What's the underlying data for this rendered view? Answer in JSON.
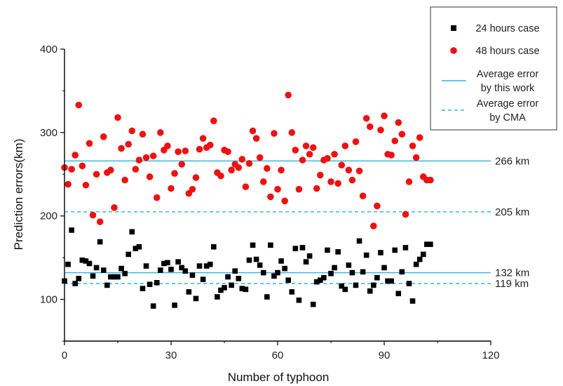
{
  "chart_data": {
    "type": "scatter",
    "title": "",
    "xlabel": "Number of typhoon",
    "ylabel": "Prediction errors(km)",
    "xlim": [
      0,
      120
    ],
    "ylim": [
      50,
      400
    ],
    "xticks": [
      0,
      30,
      60,
      90,
      120
    ],
    "yticks": [
      100,
      200,
      300,
      400
    ],
    "grid": false,
    "legend_position": "top-right",
    "series": [
      {
        "name": "24 hours case",
        "marker": "square",
        "color": "#000000",
        "x": [
          0,
          1,
          2,
          3,
          4,
          5,
          6,
          7,
          8,
          9,
          10,
          11,
          12,
          13,
          14,
          15,
          16,
          17,
          18,
          19,
          20,
          21,
          22,
          23,
          24,
          25,
          26,
          27,
          28,
          29,
          30,
          31,
          32,
          33,
          34,
          35,
          36,
          37,
          38,
          39,
          40,
          41,
          42,
          43,
          44,
          45,
          46,
          47,
          48,
          49,
          50,
          51,
          52,
          53,
          54,
          55,
          56,
          57,
          58,
          59,
          60,
          61,
          62,
          63,
          64,
          65,
          66,
          67,
          68,
          69,
          70,
          71,
          72,
          73,
          74,
          75,
          76,
          77,
          78,
          79,
          80,
          81,
          82,
          83,
          84,
          85,
          86,
          87,
          88,
          89,
          90,
          91,
          92,
          93,
          94,
          95,
          96,
          97,
          98,
          99,
          100,
          101,
          102,
          103
        ],
        "y": [
          122,
          142,
          183,
          119,
          125,
          147,
          146,
          143,
          128,
          138,
          169,
          135,
          117,
          127,
          127,
          127,
          137,
          131,
          154,
          181,
          161,
          163,
          113,
          140,
          118,
          92,
          120,
          135,
          143,
          144,
          136,
          93,
          145,
          138,
          134,
          109,
          129,
          101,
          140,
          124,
          140,
          142,
          163,
          103,
          111,
          114,
          127,
          117,
          134,
          125,
          113,
          112,
          147,
          165,
          148,
          141,
          132,
          103,
          165,
          128,
          132,
          146,
          137,
          123,
          109,
          161,
          99,
          162,
          145,
          152,
          94,
          121,
          123,
          126,
          159,
          131,
          138,
          157,
          116,
          112,
          141,
          132,
          117,
          170,
          133,
          153,
          110,
          117,
          126,
          156,
          138,
          122,
          122,
          159,
          107,
          133,
          162,
          119,
          98,
          142,
          148,
          154,
          166,
          166
        ]
      },
      {
        "name": "48 hours case",
        "marker": "circle",
        "color": "#ee1111",
        "x": [
          0,
          1,
          2,
          3,
          4,
          5,
          6,
          7,
          8,
          9,
          10,
          11,
          12,
          13,
          14,
          15,
          16,
          17,
          18,
          19,
          20,
          21,
          22,
          23,
          24,
          25,
          26,
          27,
          28,
          29,
          30,
          31,
          32,
          33,
          34,
          35,
          36,
          37,
          38,
          39,
          40,
          41,
          42,
          43,
          44,
          45,
          46,
          47,
          48,
          49,
          50,
          51,
          52,
          53,
          54,
          55,
          56,
          57,
          58,
          59,
          60,
          61,
          62,
          63,
          64,
          65,
          66,
          67,
          68,
          69,
          70,
          71,
          72,
          73,
          74,
          75,
          76,
          77,
          78,
          79,
          80,
          81,
          82,
          83,
          84,
          85,
          86,
          87,
          88,
          89,
          90,
          91,
          92,
          93,
          94,
          95,
          96,
          97,
          98,
          99,
          100,
          101,
          102,
          103
        ],
        "y": [
          258,
          238,
          256,
          273,
          333,
          260,
          237,
          287,
          201,
          250,
          193,
          295,
          252,
          255,
          210,
          318,
          281,
          243,
          286,
          302,
          256,
          267,
          298,
          270,
          247,
          272,
          222,
          300,
          279,
          284,
          233,
          251,
          277,
          262,
          278,
          227,
          232,
          246,
          280,
          293,
          282,
          285,
          314,
          252,
          248,
          279,
          277,
          255,
          262,
          258,
          268,
          235,
          263,
          302,
          293,
          270,
          241,
          257,
          223,
          299,
          232,
          255,
          218,
          345,
          300,
          279,
          232,
          267,
          284,
          274,
          282,
          233,
          249,
          267,
          269,
          241,
          274,
          239,
          261,
          284,
          255,
          243,
          289,
          254,
          224,
          317,
          307,
          188,
          212,
          303,
          320,
          274,
          273,
          290,
          312,
          298,
          202,
          241,
          284,
          270,
          294,
          247,
          243,
          243
        ]
      },
      {
        "name": "Average error by this work",
        "type": "hline",
        "style": "solid",
        "color": "#29b6e6",
        "values": [
          266,
          132
        ],
        "labels": [
          "266 km",
          "132 km"
        ]
      },
      {
        "name": "Average error by CMA",
        "type": "hline",
        "style": "dashed",
        "color": "#29b6e6",
        "values": [
          205,
          119
        ],
        "labels": [
          "205 km",
          "119 km"
        ]
      }
    ]
  },
  "legend": {
    "items": [
      {
        "kind": "square",
        "lines": [
          "24 hours case"
        ]
      },
      {
        "kind": "circle",
        "lines": [
          "48 hours case"
        ]
      },
      {
        "kind": "solid",
        "lines": [
          "Average error",
          "by this work"
        ]
      },
      {
        "kind": "dashed",
        "lines": [
          "Average error",
          "by CMA"
        ]
      }
    ]
  }
}
